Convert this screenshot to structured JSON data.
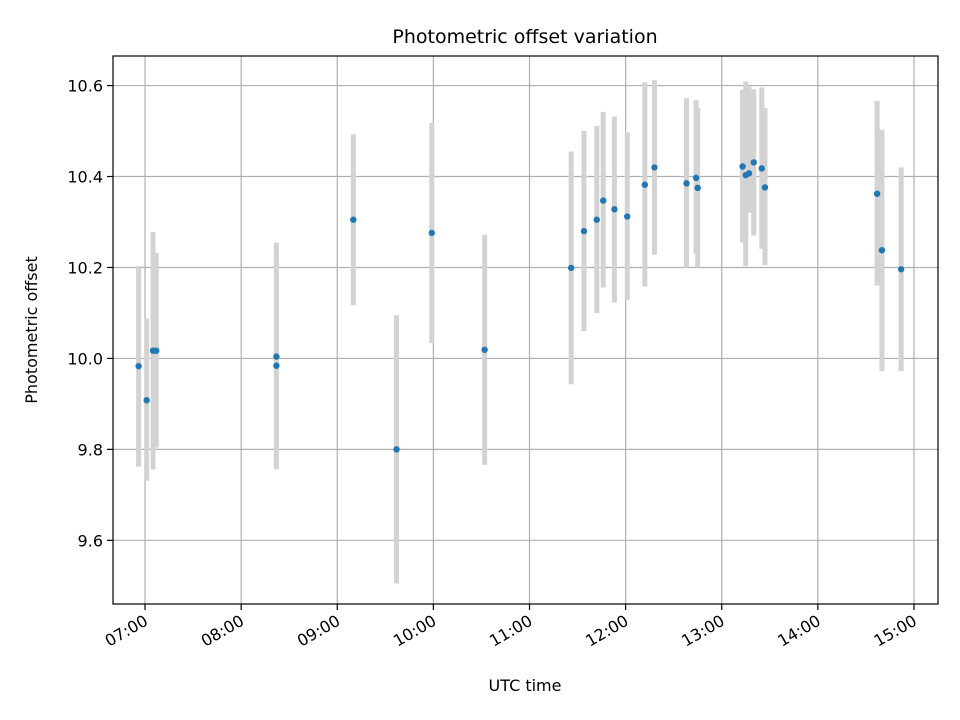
{
  "chart_data": {
    "type": "scatter",
    "title": "Photometric offset variation",
    "xlabel": "UTC time",
    "ylabel": "Photometric offset",
    "xlim": [
      "06:40",
      "15:15"
    ],
    "ylim": [
      9.46,
      10.665
    ],
    "x_ticks": [
      "07:00",
      "08:00",
      "09:00",
      "10:00",
      "11:00",
      "12:00",
      "13:00",
      "14:00",
      "15:00"
    ],
    "y_ticks": [
      9.6,
      9.8,
      10.0,
      10.2,
      10.4,
      10.6
    ],
    "grid": true,
    "point_color": "#1f77b4",
    "errorbar_color": "#d3d3d3",
    "points": [
      {
        "t": "06:56",
        "y": 9.983,
        "lo": 9.762,
        "hi": 10.203
      },
      {
        "t": "07:01",
        "y": 9.908,
        "lo": 9.731,
        "hi": 10.088
      },
      {
        "t": "07:05",
        "y": 10.017,
        "lo": 9.756,
        "hi": 10.278
      },
      {
        "t": "07:07",
        "y": 10.017,
        "lo": 9.804,
        "hi": 10.232
      },
      {
        "t": "08:22",
        "y": 9.984,
        "lo": 9.756,
        "hi": 10.212
      },
      {
        "t": "08:22",
        "y": 10.004,
        "lo": 9.78,
        "hi": 10.255
      },
      {
        "t": "09:10",
        "y": 10.305,
        "lo": 10.117,
        "hi": 10.493
      },
      {
        "t": "09:37",
        "y": 9.8,
        "lo": 9.505,
        "hi": 10.095
      },
      {
        "t": "09:59",
        "y": 10.276,
        "lo": 10.034,
        "hi": 10.518
      },
      {
        "t": "10:32",
        "y": 10.019,
        "lo": 9.766,
        "hi": 10.272
      },
      {
        "t": "11:26",
        "y": 10.199,
        "lo": 9.943,
        "hi": 10.455
      },
      {
        "t": "11:34",
        "y": 10.28,
        "lo": 10.06,
        "hi": 10.5
      },
      {
        "t": "11:42",
        "y": 10.305,
        "lo": 10.1,
        "hi": 10.511
      },
      {
        "t": "11:46",
        "y": 10.347,
        "lo": 10.156,
        "hi": 10.542
      },
      {
        "t": "11:53",
        "y": 10.328,
        "lo": 10.123,
        "hi": 10.532
      },
      {
        "t": "12:01",
        "y": 10.312,
        "lo": 10.128,
        "hi": 10.497
      },
      {
        "t": "12:12",
        "y": 10.382,
        "lo": 10.158,
        "hi": 10.607
      },
      {
        "t": "12:18",
        "y": 10.42,
        "lo": 10.228,
        "hi": 10.612
      },
      {
        "t": "12:38",
        "y": 10.385,
        "lo": 10.2,
        "hi": 10.572
      },
      {
        "t": "12:44",
        "y": 10.397,
        "lo": 10.23,
        "hi": 10.568
      },
      {
        "t": "12:45",
        "y": 10.375,
        "lo": 10.2,
        "hi": 10.551
      },
      {
        "t": "13:13",
        "y": 10.422,
        "lo": 10.255,
        "hi": 10.591
      },
      {
        "t": "13:15",
        "y": 10.403,
        "lo": 10.203,
        "hi": 10.609
      },
      {
        "t": "13:17",
        "y": 10.407,
        "lo": 10.32,
        "hi": 10.598
      },
      {
        "t": "13:20",
        "y": 10.431,
        "lo": 10.27,
        "hi": 10.592
      },
      {
        "t": "13:25",
        "y": 10.418,
        "lo": 10.241,
        "hi": 10.596
      },
      {
        "t": "13:27",
        "y": 10.376,
        "lo": 10.205,
        "hi": 10.551
      },
      {
        "t": "14:37",
        "y": 10.362,
        "lo": 10.16,
        "hi": 10.566
      },
      {
        "t": "14:40",
        "y": 10.238,
        "lo": 9.972,
        "hi": 10.503
      },
      {
        "t": "14:52",
        "y": 10.196,
        "lo": 9.972,
        "hi": 10.42
      }
    ]
  }
}
